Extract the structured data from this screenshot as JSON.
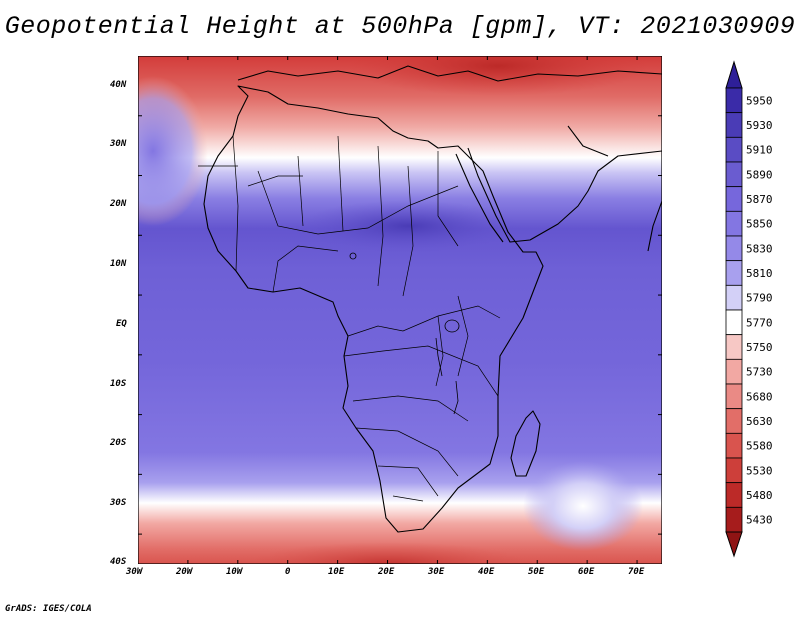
{
  "title": "Geopotential Height at 500hPa [gpm], VT: 2021030909",
  "footer": "GrADS: IGES/COLA",
  "map": {
    "lat_labels": [
      "40N",
      "30N",
      "20N",
      "10N",
      "EQ",
      "10S",
      "20S",
      "30S",
      "40S"
    ],
    "lon_labels": [
      "30W",
      "20W",
      "10W",
      "0",
      "10E",
      "20E",
      "30E",
      "40E",
      "50E",
      "60E",
      "70E"
    ]
  },
  "legend": {
    "levels": [
      "5950",
      "5930",
      "5910",
      "5890",
      "5870",
      "5850",
      "5830",
      "5810",
      "5790",
      "5770",
      "5750",
      "5730",
      "5680",
      "5630",
      "5580",
      "5530",
      "5480",
      "5430"
    ],
    "colors": [
      "#3a2ba8",
      "#4a3cb6",
      "#5a4cc4",
      "#6a5cd0",
      "#7667dc",
      "#8376e2",
      "#9489e8",
      "#a8a0ee",
      "#d3d0f7",
      "#ffffff",
      "#f7c8c5",
      "#f2a8a3",
      "#ea8a85",
      "#e26e68",
      "#d9544e",
      "#cd3f3a",
      "#bc2a28",
      "#a61c1c"
    ],
    "top_color": "#2e1f98",
    "bottom_color": "#8f1414"
  }
}
